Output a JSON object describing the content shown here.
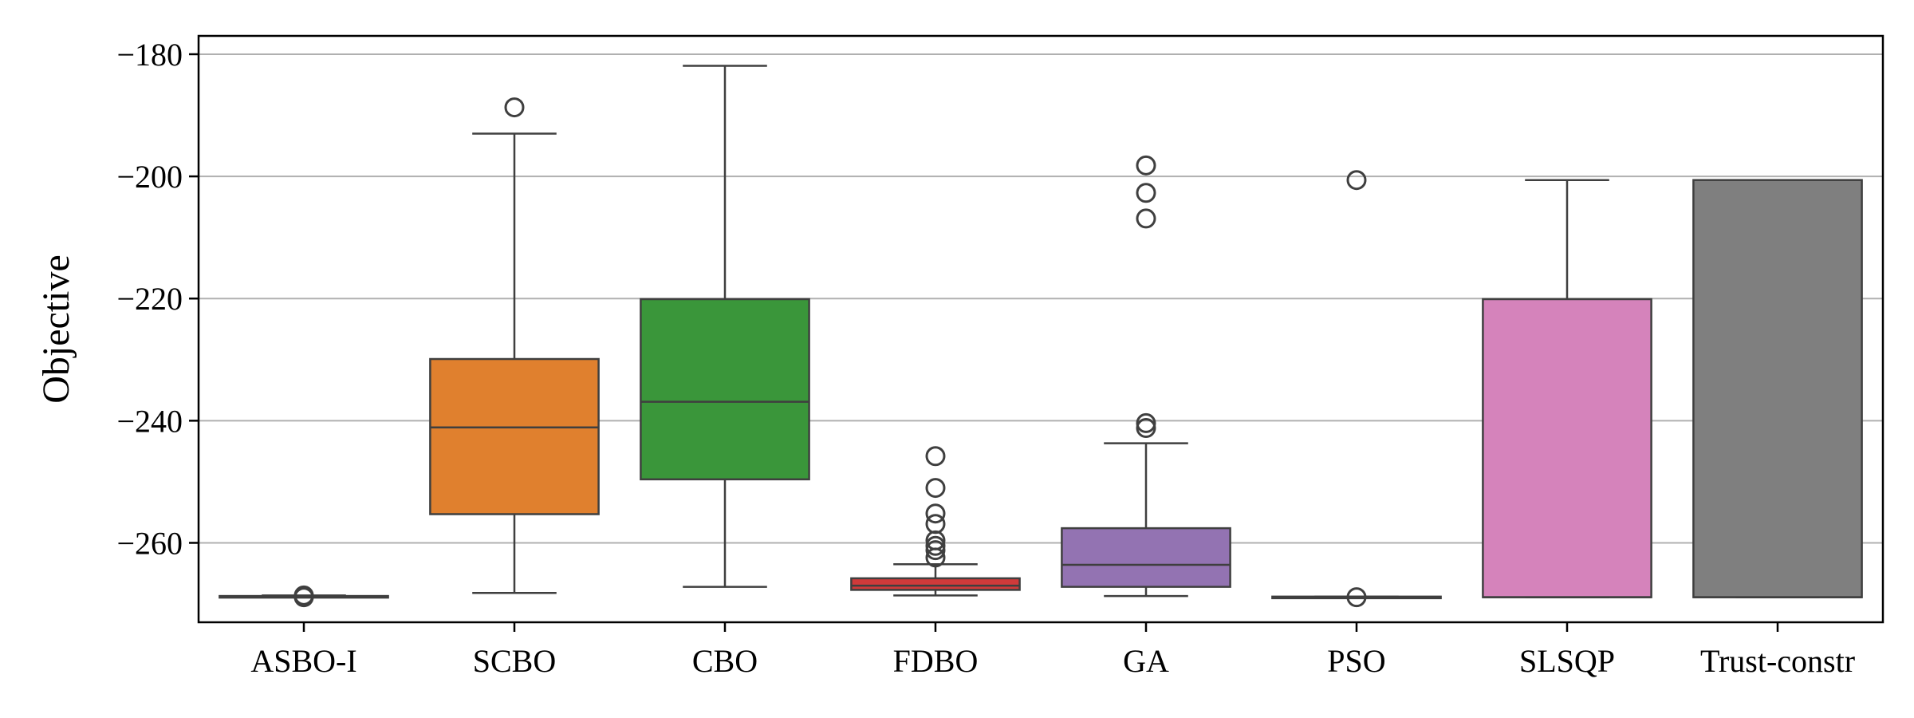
{
  "chart_data": {
    "type": "box",
    "ylabel": "Objective",
    "xlabel": "",
    "ylim": [
      -273,
      -177
    ],
    "yticks": [
      -180,
      -200,
      -220,
      -240,
      -260
    ],
    "ytick_labels": [
      "−180",
      "−200",
      "−220",
      "−240",
      "−260"
    ],
    "grid": "horizontal",
    "legend": "none",
    "categories": [
      "ASBO-I",
      "SCBO",
      "CBO",
      "FDBO",
      "GA",
      "PSO",
      "SLSQP",
      "Trust-constr"
    ],
    "boxes": [
      {
        "category": "ASBO-I",
        "color": "#1f77b4",
        "whisker_low": -268.8,
        "q1": -268.8,
        "median": -268.8,
        "q3": -268.7,
        "whisker_high": -268.6,
        "outliers": [
          -268.6,
          -268.9
        ]
      },
      {
        "category": "SCBO",
        "color": "#e0802e",
        "whisker_low": -268.2,
        "q1": -255.3,
        "median": -241.1,
        "q3": -229.9,
        "whisker_high": -193.0,
        "outliers": [
          -188.7
        ]
      },
      {
        "category": "CBO",
        "color": "#3a963a",
        "whisker_low": -267.2,
        "q1": -249.6,
        "median": -236.9,
        "q3": -220.1,
        "whisker_high": -181.9,
        "outliers": []
      },
      {
        "category": "FDBO",
        "color": "#d03a3a",
        "whisker_low": -268.6,
        "q1": -267.7,
        "median": -267.0,
        "q3": -265.8,
        "whisker_high": -263.5,
        "outliers": [
          -245.8,
          -251.0,
          -255.2,
          -256.9,
          -259.6,
          -260.5,
          -261.2,
          -262.4
        ]
      },
      {
        "category": "GA",
        "color": "#9373b2",
        "whisker_low": -268.7,
        "q1": -267.2,
        "median": -263.6,
        "q3": -257.6,
        "whisker_high": -243.7,
        "outliers": [
          -198.2,
          -202.7,
          -206.9,
          -240.4,
          -241.2
        ]
      },
      {
        "category": "PSO",
        "color": "#8c564b",
        "whisker_low": -268.9,
        "q1": -268.9,
        "median": -268.9,
        "q3": -268.8,
        "whisker_high": -268.8,
        "outliers": [
          -200.6,
          -268.9
        ]
      },
      {
        "category": "SLSQP",
        "color": "#d583bb",
        "whisker_low": -268.9,
        "q1": -268.9,
        "median": -268.9,
        "q3": -220.1,
        "whisker_high": -200.6,
        "outliers": []
      },
      {
        "category": "Trust-constr",
        "color": "#7f7f7f",
        "whisker_low": -268.9,
        "q1": -268.9,
        "median": -268.9,
        "q3": -200.6,
        "whisker_high": -200.6,
        "outliers": []
      }
    ]
  }
}
